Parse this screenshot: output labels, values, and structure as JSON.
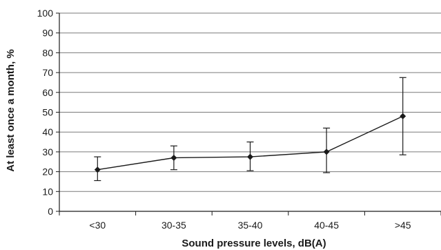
{
  "chart_data": {
    "type": "line",
    "xlabel": "Sound pressure levels, dB(A)",
    "ylabel": "At least once a month, %",
    "ylim": [
      0,
      100
    ],
    "yticks": [
      0,
      10,
      20,
      30,
      40,
      50,
      60,
      70,
      80,
      90,
      100
    ],
    "grid": true,
    "categories": [
      "<30",
      "30-35",
      "35-40",
      "40-45",
      ">45"
    ],
    "series": [
      {
        "values": [
          21,
          27,
          27.5,
          30,
          48
        ],
        "error_low": [
          15.5,
          21,
          20.5,
          19.5,
          28.5
        ],
        "error_high": [
          27.5,
          33,
          35,
          42,
          67.5
        ],
        "color": "#1a1a1a",
        "marker": "diamond"
      }
    ]
  }
}
